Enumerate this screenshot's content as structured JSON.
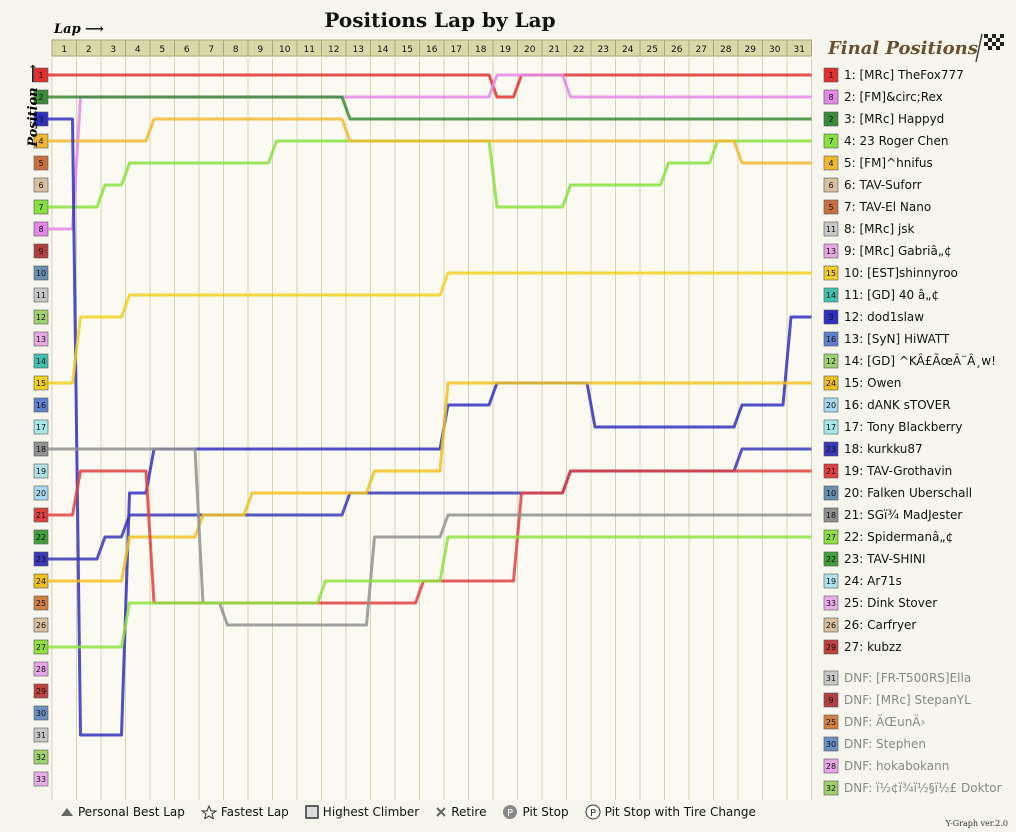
{
  "chart_data": {
    "type": "line",
    "title": "Positions Lap by Lap",
    "xlabel": "Lap",
    "ylabel": "Position",
    "final_title": "Final Positions",
    "laps": [
      1,
      2,
      3,
      4,
      5,
      6,
      7,
      8,
      9,
      10,
      11,
      12,
      13,
      14,
      15,
      16,
      17,
      18,
      19,
      20,
      21,
      22,
      23,
      24,
      25,
      26,
      27,
      28,
      29,
      30,
      31
    ],
    "positions": [
      "1",
      "2",
      "3",
      "4",
      "5",
      "6",
      "7",
      "8",
      "9",
      "10",
      "11",
      "12",
      "13",
      "14",
      "15",
      "16",
      "17",
      "18",
      "19",
      "20",
      "21",
      "22",
      "23",
      "24",
      "25",
      "26",
      "27",
      "28",
      "29",
      "30",
      "31",
      "32",
      "33"
    ],
    "finishers": [
      {
        "pos": 1,
        "text": "1: [MRc] TheFox777",
        "grid": "1",
        "color": "#e03030"
      },
      {
        "pos": 2,
        "text": "2: [FM]&circ;Rex",
        "grid": "8",
        "color": "#e488e8"
      },
      {
        "pos": 3,
        "text": "3: [MRc] Happyd",
        "grid": "2",
        "color": "#3a8a3a"
      },
      {
        "pos": 4,
        "text": "4: 23 Roger Chen",
        "grid": "7",
        "color": "#88e040"
      },
      {
        "pos": 5,
        "text": "5: [FM]^hnifus",
        "grid": "4",
        "color": "#f0b830"
      },
      {
        "pos": 6,
        "text": "6: TAV-Suforr",
        "grid": "6",
        "color": "#d8c0a0"
      },
      {
        "pos": 7,
        "text": "7: TAV-El Nano",
        "grid": "5",
        "color": "#c87040"
      },
      {
        "pos": 8,
        "text": "8: [MRc] jsk",
        "grid": "11",
        "color": "#c8c8c8"
      },
      {
        "pos": 9,
        "text": "9: [MRc] Gabriâ„¢",
        "grid": "13",
        "color": "#e8a8e0"
      },
      {
        "pos": 10,
        "text": "10: [EST]shinnyroo",
        "grid": "15",
        "color": "#f0d020"
      },
      {
        "pos": 11,
        "text": "11: [GD] 40 â„¢",
        "grid": "14",
        "color": "#40c0b0"
      },
      {
        "pos": 12,
        "text": "12: dod1slaw",
        "grid": "3",
        "color": "#3030c0"
      },
      {
        "pos": 13,
        "text": "13: [SyN] HiWATT",
        "grid": "16",
        "color": "#6080d0"
      },
      {
        "pos": 14,
        "text": "14: [GD] ^KÂ£ÃœÂ¨Â¸w!",
        "grid": "12",
        "color": "#a0d070"
      },
      {
        "pos": 15,
        "text": "15: Owen",
        "grid": "24",
        "color": "#f0c020"
      },
      {
        "pos": 16,
        "text": "16: dANK sTOVER",
        "grid": "20",
        "color": "#a8d8f0"
      },
      {
        "pos": 17,
        "text": "17: Tony Blackberry",
        "grid": "17",
        "color": "#a8e8e8"
      },
      {
        "pos": 18,
        "text": "18: kurkku87",
        "grid": "23",
        "color": "#3838b8"
      },
      {
        "pos": 19,
        "text": "19: TAV-Grothavin",
        "grid": "21",
        "color": "#e04040"
      },
      {
        "pos": 20,
        "text": "20: Falken Uberschall",
        "grid": "10",
        "color": "#6890b0"
      },
      {
        "pos": 21,
        "text": "21: SGï¾ MadJester",
        "grid": "18",
        "color": "#909090"
      },
      {
        "pos": 22,
        "text": "22: Spidermanâ„¢",
        "grid": "27",
        "color": "#90e040"
      },
      {
        "pos": 23,
        "text": "23: TAV-SHINI",
        "grid": "22",
        "color": "#40a040"
      },
      {
        "pos": 24,
        "text": "24: Ar71s",
        "grid": "19",
        "color": "#b0e0e8"
      },
      {
        "pos": 25,
        "text": "25: Dink Stover",
        "grid": "33",
        "color": "#e8b0e8"
      },
      {
        "pos": 26,
        "text": "26: Carfryer",
        "grid": "26",
        "color": "#d8c0a0"
      },
      {
        "pos": 27,
        "text": "27: kubzz",
        "grid": "29",
        "color": "#c04040"
      }
    ],
    "dnf": [
      {
        "text": "DNF: [FR-T500RS]Ella",
        "grid": "31",
        "color": "#c8c8c8"
      },
      {
        "text": "DNF: [MRc] StepanYL",
        "grid": "9",
        "color": "#b04040"
      },
      {
        "text": "DNF: ÄŒunÄ›",
        "grid": "25",
        "color": "#d08040"
      },
      {
        "text": "DNF: Stephen",
        "grid": "30",
        "color": "#6890c0"
      },
      {
        "text": "DNF: hokabokann",
        "grid": "28",
        "color": "#e8a8e8"
      },
      {
        "text": "DNF: ï½¢ï¾ï½§ï½£ Doktor",
        "grid": "32",
        "color": "#a0d070"
      }
    ],
    "series": [
      {
        "name": "1: [MRc] TheFox777",
        "color": "#e03030",
        "values": [
          1,
          1,
          1,
          1,
          1,
          1,
          1,
          1,
          1,
          1,
          1,
          1,
          1,
          1,
          1,
          1,
          1,
          1,
          2,
          1,
          1,
          1,
          1,
          1,
          1,
          1,
          1,
          1,
          1,
          1,
          1
        ]
      },
      {
        "name": "2: [FM]&circ;Rex",
        "color": "#e488e8",
        "values": [
          8,
          2,
          2,
          2,
          2,
          2,
          2,
          2,
          2,
          2,
          2,
          2,
          2,
          2,
          2,
          2,
          2,
          2,
          1,
          1,
          1,
          2,
          2,
          2,
          2,
          2,
          2,
          2,
          2,
          2,
          2
        ]
      },
      {
        "name": "3: [MRc] Happyd",
        "color": "#3a8a3a",
        "values": [
          2,
          2,
          2,
          2,
          2,
          2,
          2,
          2,
          2,
          2,
          2,
          2,
          3,
          3,
          3,
          3,
          3,
          3,
          3,
          3,
          3,
          3,
          3,
          3,
          3,
          3,
          3,
          3,
          3,
          3,
          3
        ]
      },
      {
        "name": "4: 23 Roger Chen",
        "color": "#88e040",
        "values": [
          7,
          7,
          6,
          5,
          5,
          5,
          5,
          5,
          5,
          4,
          4,
          4,
          4,
          4,
          4,
          4,
          4,
          4,
          7,
          7,
          7,
          6,
          6,
          6,
          6,
          5,
          5,
          4,
          4,
          4,
          4
        ]
      },
      {
        "name": "5: [FM]^hnifus",
        "color": "#f0b830",
        "values": [
          4,
          4,
          4,
          4,
          3,
          3,
          3,
          3,
          3,
          3,
          3,
          3,
          4,
          4,
          4,
          4,
          4,
          4,
          4,
          4,
          4,
          4,
          4,
          4,
          4,
          4,
          4,
          4,
          5,
          5,
          5
        ]
      },
      {
        "name": "12: dod1slaw",
        "color": "#3030c0",
        "values": [
          3,
          31,
          31,
          20,
          18,
          18,
          18,
          18,
          18,
          18,
          18,
          18,
          18,
          18,
          18,
          18,
          16,
          16,
          15,
          15,
          15,
          15,
          17,
          17,
          17,
          17,
          17,
          17,
          16,
          16,
          12
        ]
      },
      {
        "name": "18: kurkku87",
        "color": "#3838b8",
        "values": [
          23,
          23,
          22,
          21,
          21,
          21,
          21,
          21,
          21,
          21,
          21,
          21,
          20,
          20,
          20,
          20,
          20,
          20,
          20,
          20,
          20,
          19,
          19,
          19,
          19,
          19,
          19,
          19,
          18,
          18,
          18
        ]
      },
      {
        "name": "10: [EST]shinnyroo",
        "color": "#f0d020",
        "values": [
          15,
          12,
          12,
          11,
          11,
          11,
          11,
          11,
          11,
          11,
          11,
          11,
          11,
          11,
          11,
          11,
          10,
          10,
          10,
          10,
          10,
          10,
          10,
          10,
          10,
          10,
          10,
          10,
          10,
          10,
          10
        ]
      },
      {
        "name": "15: Owen",
        "color": "#f0c020",
        "values": [
          24,
          24,
          24,
          22,
          22,
          22,
          21,
          21,
          20,
          20,
          20,
          20,
          20,
          19,
          19,
          19,
          15,
          15,
          15,
          15,
          15,
          15,
          15,
          15,
          15,
          15,
          15,
          15,
          15,
          15,
          15
        ]
      },
      {
        "name": "19: TAV-Grothavin",
        "color": "#e04040",
        "values": [
          21,
          19,
          19,
          19,
          25,
          25,
          25,
          25,
          25,
          25,
          25,
          25,
          25,
          25,
          25,
          24,
          24,
          24,
          24,
          20,
          20,
          19,
          19,
          19,
          19,
          19,
          19,
          19,
          19,
          19,
          19
        ]
      },
      {
        "name": "21: SGï¾ MadJester",
        "color": "#909090",
        "values": [
          18,
          18,
          18,
          18,
          18,
          18,
          25,
          26,
          26,
          26,
          26,
          26,
          26,
          22,
          22,
          22,
          21,
          21,
          21,
          21,
          21,
          21,
          21,
          21,
          21,
          21,
          21,
          21,
          21,
          21,
          21
        ]
      },
      {
        "name": "22: Spidermanâ„¢",
        "color": "#90e040",
        "values": [
          27,
          27,
          27,
          25,
          25,
          25,
          25,
          25,
          25,
          25,
          25,
          24,
          24,
          24,
          24,
          24,
          22,
          22,
          22,
          22,
          22,
          22,
          22,
          22,
          22,
          22,
          22,
          22,
          22,
          22,
          22
        ]
      }
    ],
    "legend_items": [
      {
        "label": "Personal Best Lap",
        "icon": "triangle"
      },
      {
        "label": "Fastest Lap",
        "icon": "star"
      },
      {
        "label": "Highest Climber",
        "icon": "box"
      },
      {
        "label": "Retire",
        "icon": "cross"
      },
      {
        "label": "Pit Stop",
        "icon": "pit"
      },
      {
        "label": "Pit Stop with Tire Change",
        "icon": "pit-tire"
      }
    ],
    "version": "Y-Graph ver.2.0"
  }
}
